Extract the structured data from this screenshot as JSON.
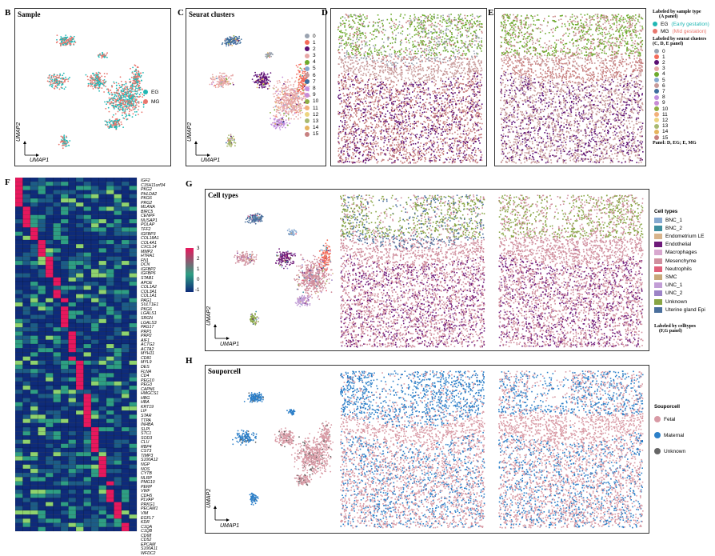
{
  "panels": {
    "B": {
      "letter": "B",
      "title": "Sample",
      "legend": [
        {
          "label": "EG",
          "color": "#21B7B4"
        },
        {
          "label": "MG",
          "color": "#E8776E"
        }
      ]
    },
    "C": {
      "letter": "C",
      "title": "Seurat clusters"
    },
    "D": {
      "letter": "D"
    },
    "E": {
      "letter": "E"
    },
    "F": {
      "letter": "F"
    },
    "G": {
      "letter": "G",
      "title": "Cell types"
    },
    "H": {
      "letter": "H",
      "title": "Souporcell"
    },
    "axes": {
      "x": "UMAP1",
      "y": "UMAP2"
    }
  },
  "cluster_legend": [
    {
      "label": "0",
      "color": "#9AA3B0"
    },
    {
      "label": "1",
      "color": "#F46B5A"
    },
    {
      "label": "2",
      "color": "#5B0E73"
    },
    {
      "label": "3",
      "color": "#E7A7A6"
    },
    {
      "label": "4",
      "color": "#6DAA2C"
    },
    {
      "label": "5",
      "color": "#86A9D0"
    },
    {
      "label": "6",
      "color": "#C79A9A"
    },
    {
      "label": "7",
      "color": "#3E6E9E"
    },
    {
      "label": "8",
      "color": "#C38EE0"
    },
    {
      "label": "9",
      "color": "#C88BD6"
    },
    {
      "label": "10",
      "color": "#8FAE45"
    },
    {
      "label": "11",
      "color": "#F2B07A"
    },
    {
      "label": "12",
      "color": "#EDD47F"
    },
    {
      "label": "13",
      "color": "#A8B970"
    },
    {
      "label": "14",
      "color": "#E6B45E"
    },
    {
      "label": "15",
      "color": "#C78080"
    }
  ],
  "right_legend": {
    "heading_a": "Labeled by sample type",
    "heading_a2": "(A panel)",
    "eg": {
      "code": "EG",
      "desc": "(Early gestation)",
      "color": "#21B7B4"
    },
    "mg": {
      "code": "MG",
      "desc": "(Mid gestation)",
      "color": "#E8776E"
    },
    "heading_c": "Labeled by seurat clusters",
    "heading_c2": "(C, D, E panel)",
    "footer": "Panel: D, EG; E, MG"
  },
  "celltype_legend": {
    "title": "Cell types",
    "items": [
      {
        "label": "BNC_1",
        "color": "#86A9D0"
      },
      {
        "label": "BNC_2",
        "color": "#3E8E9E"
      },
      {
        "label": "Endometrium LE",
        "color": "#D8B48C"
      },
      {
        "label": "Endothelial",
        "color": "#6E1A7A"
      },
      {
        "label": "Macrophages",
        "color": "#D8A8CF"
      },
      {
        "label": "Mesenchyme",
        "color": "#D08F9E"
      },
      {
        "label": "Neutrophils",
        "color": "#E0607A"
      },
      {
        "label": "SMC",
        "color": "#C8A87A"
      },
      {
        "label": "UNC_1",
        "color": "#C29ED6"
      },
      {
        "label": "UNC_2",
        "color": "#9C83C6"
      },
      {
        "label": "Unknown",
        "color": "#88A544"
      },
      {
        "label": "Uterine gland Epi",
        "color": "#4A6F9C"
      }
    ],
    "footer1": "Labeled by celltypes",
    "footer2": "(F,G panel)"
  },
  "souporcell_legend": {
    "title": "Souporcell",
    "items": [
      {
        "label": "Fetal",
        "color": "#D89AA5"
      },
      {
        "label": "Maternal",
        "color": "#2C7FC8"
      },
      {
        "label": "Unknown",
        "color": "#666666"
      }
    ]
  },
  "heatmap": {
    "scale": {
      "values": [
        "3",
        "2",
        "1",
        "0",
        "-1"
      ],
      "colors": [
        "#E8175D",
        "#2E9E83",
        "#0E2B7A"
      ]
    },
    "genes": [
      "IGF2",
      "C15H11orf34",
      "PKG2",
      "PHLDA2",
      "PKG6",
      "PRG2",
      "MLANA",
      "BIRC5",
      "CENPF",
      "NUSAP1",
      "POLAP",
      "TFF2",
      "IGFBP3",
      "COL18A1",
      "COL4A1",
      "CXCL14",
      "MMP2",
      "HTRA1",
      "FN1",
      "DCN",
      "IGFBP2",
      "IGFBP6",
      "STAB1",
      "APOE",
      "COL1A2",
      "COL3A1",
      "COL1A1",
      "PAG1",
      "SULT1E1",
      "PKG6",
      "LGALS1",
      "SRGN",
      "LGALS3",
      "PAG17",
      "PRP1",
      "PRP2",
      "AIF1",
      "ACTG2",
      "ACTA2",
      "MYH11",
      "CD81",
      "MYL9",
      "DES",
      "FLNA",
      "CD4",
      "PEG10",
      "PEG3",
      "CAPN6",
      "HMGCS1",
      "HBG",
      "HBA",
      "KRT19",
      "LIF",
      "STAR",
      "TTPA",
      "INHBA",
      "SLPI",
      "STC1",
      "SOD3",
      "CLU",
      "RBP4",
      "CST3",
      "TIMP3",
      "S100A12",
      "NGP",
      "NOS",
      "CYTB",
      "NLRP",
      "PMG10",
      "PERP",
      "VWF",
      "CDH5",
      "PLVAP",
      "PRKG1",
      "PECAM1",
      "VIM",
      "EGFL7",
      "KDR",
      "C1QA",
      "C1QB",
      "CD68",
      "CD52",
      "EPCAM",
      "S100A11",
      "WFDC2"
    ]
  }
}
